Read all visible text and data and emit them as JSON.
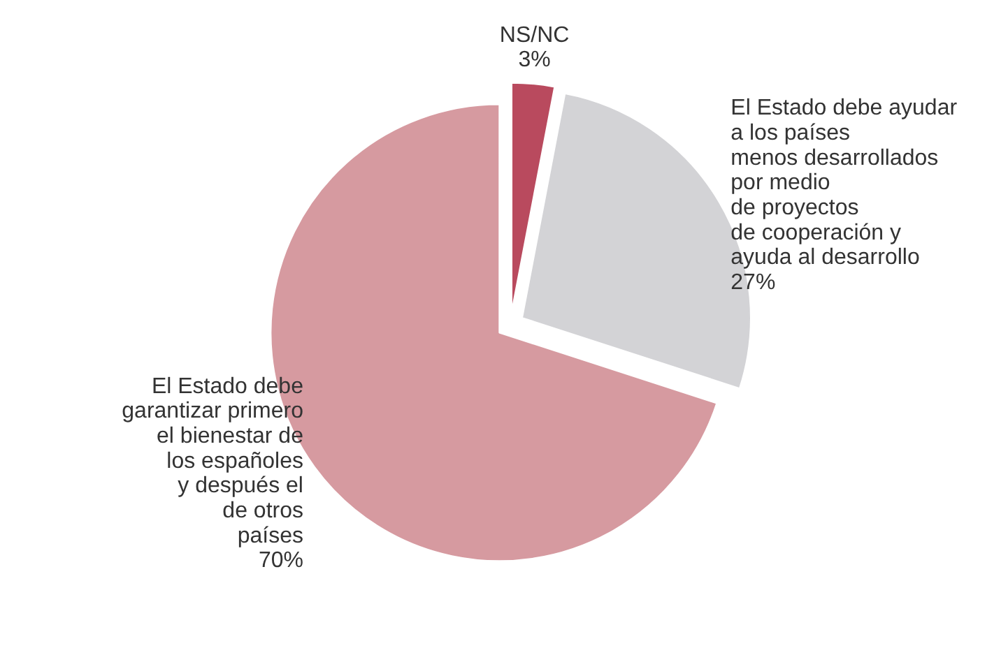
{
  "chart_data": {
    "type": "pie",
    "categories": [
      "NS/NC",
      "El Estado debe ayudar\na los países\nmenos desarrollados\npor medio\nde proyectos\nde cooperación y\nayuda al desarrollo",
      "El Estado debe\ngarantizar primero\nel bienestar de\nlos españoles\ny después el\nde otros\npaíses"
    ],
    "values": [
      3,
      27,
      70
    ],
    "value_labels": [
      "3%",
      "27%",
      "70%"
    ],
    "colors": [
      "#b94a5e",
      "#d3d3d6",
      "#d69aa0"
    ]
  }
}
